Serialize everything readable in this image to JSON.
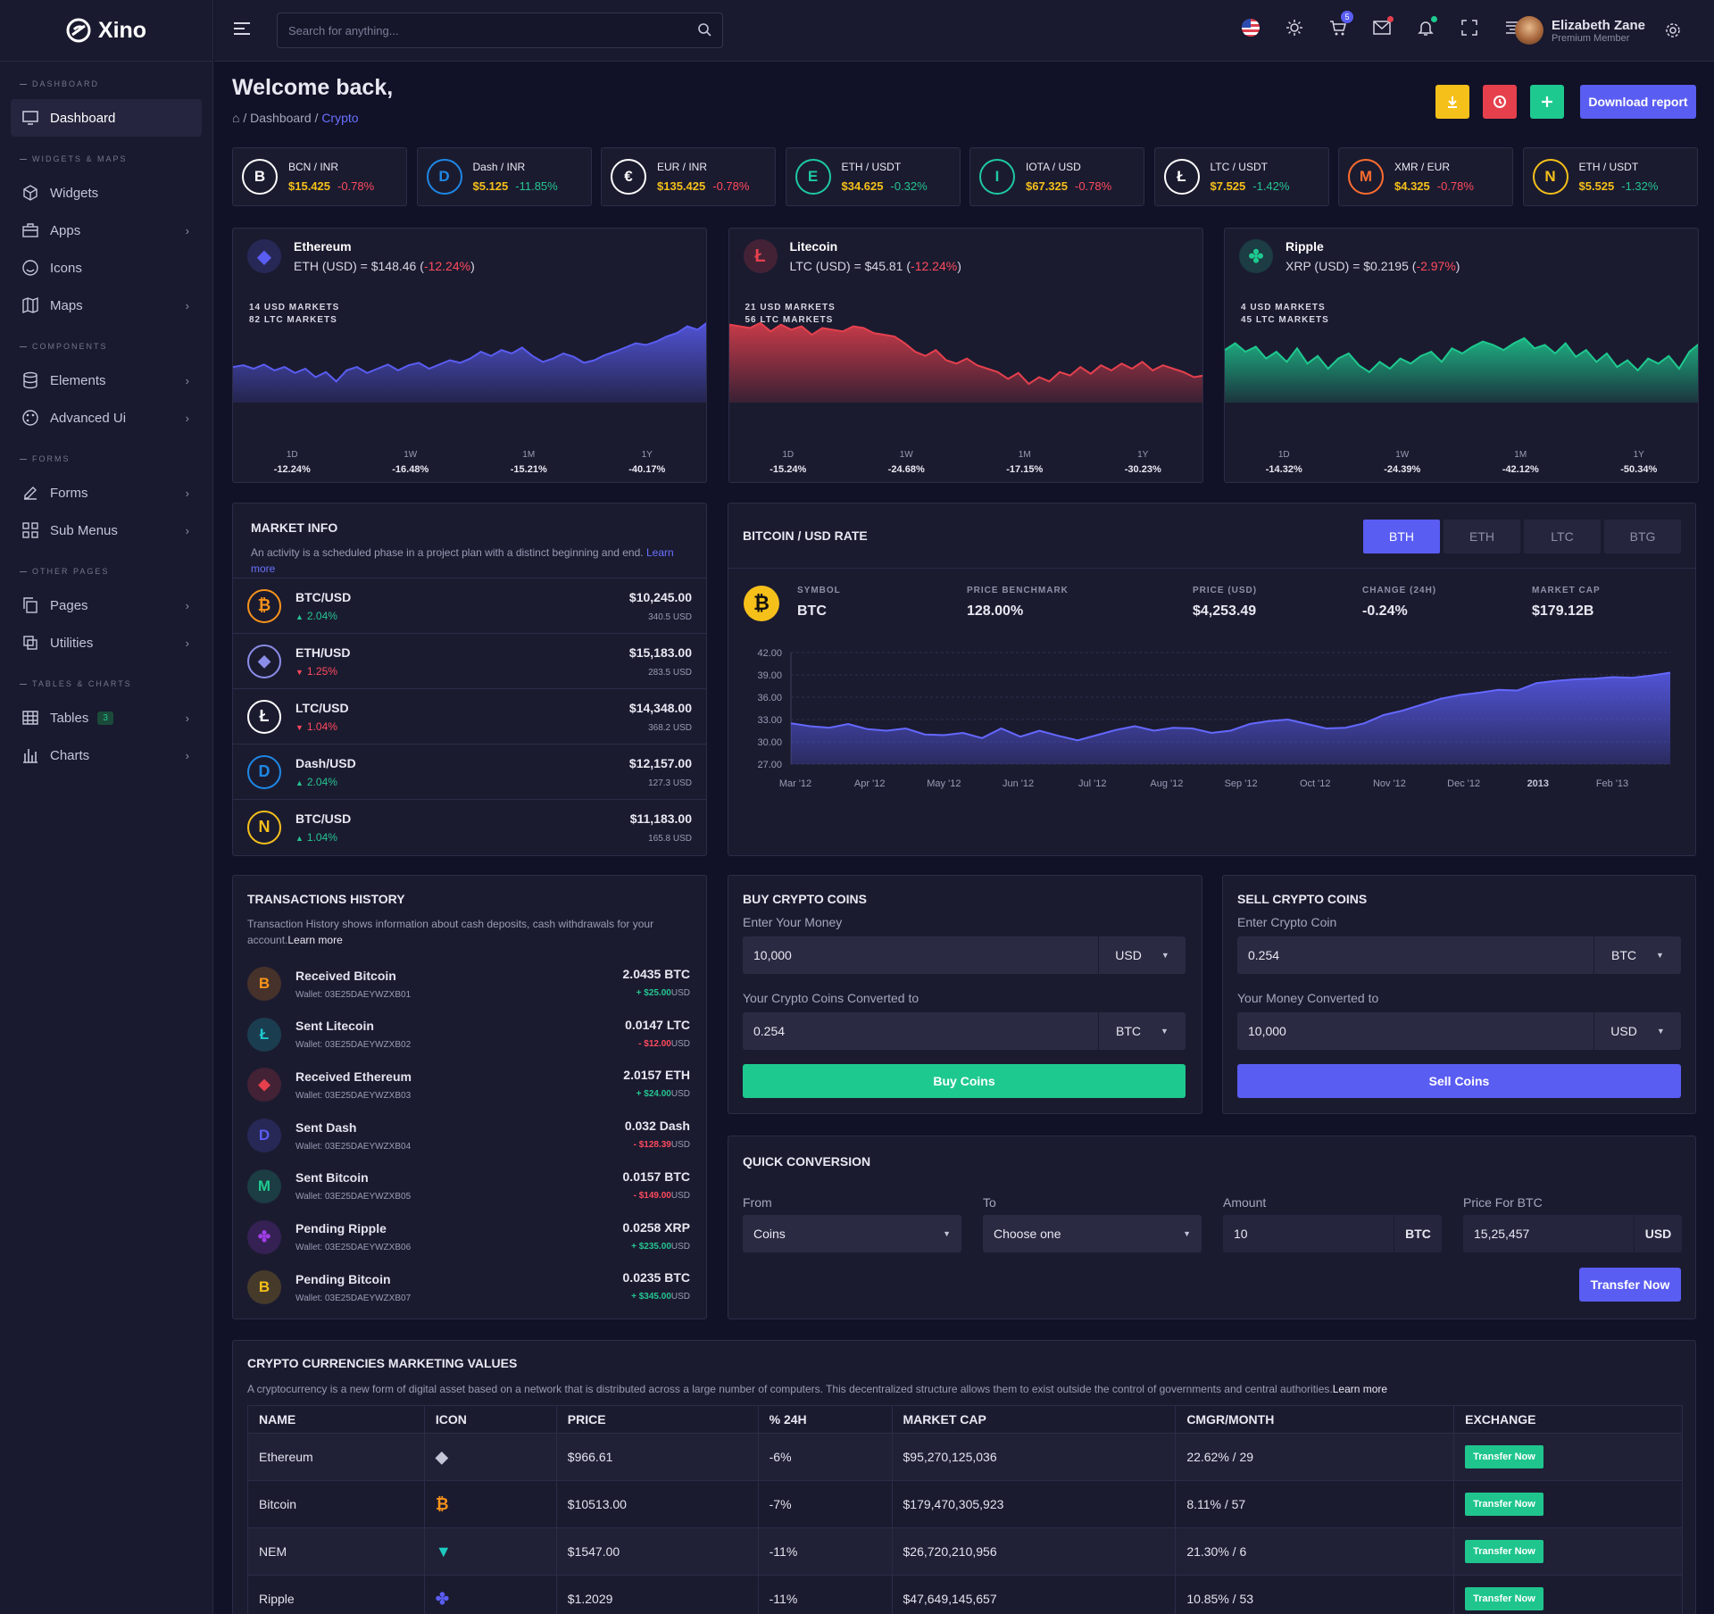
{
  "brand": {
    "name": "Xino"
  },
  "search": {
    "placeholder": "Search for anything..."
  },
  "topbar": {
    "cart_count": "5"
  },
  "user": {
    "name": "Elizabeth Zane",
    "role": "Premium Member"
  },
  "sidebar": {
    "sections": [
      "DASHBOARD",
      "WIDGETS & MAPS",
      "COMPONENTS",
      "FORMS",
      "OTHER PAGES",
      "TABLES & CHARTS"
    ],
    "items": [
      {
        "label": "Dashboard",
        "icon": "monitor-icon"
      },
      {
        "label": "Widgets",
        "icon": "cube-icon"
      },
      {
        "label": "Apps",
        "icon": "briefcase-icon"
      },
      {
        "label": "Icons",
        "icon": "smile-icon"
      },
      {
        "label": "Maps",
        "icon": "map-icon"
      },
      {
        "label": "Elements",
        "icon": "database-icon"
      },
      {
        "label": "Advanced Ui",
        "icon": "palette-icon"
      },
      {
        "label": "Forms",
        "icon": "edit-icon"
      },
      {
        "label": "Sub Menus",
        "icon": "grid-icon"
      },
      {
        "label": "Pages",
        "icon": "copy-icon"
      },
      {
        "label": "Utilities",
        "icon": "layers-icon"
      },
      {
        "label": "Tables",
        "icon": "table-icon",
        "badge": "3"
      },
      {
        "label": "Charts",
        "icon": "bar-chart-icon"
      }
    ]
  },
  "page": {
    "title": "Welcome back,",
    "breadcrumb": [
      "Dashboard",
      "Crypto"
    ],
    "separator": "/",
    "download_label": "Download report"
  },
  "tickers": [
    {
      "pair": "BCN / INR",
      "price": "$15.425",
      "change": "-0.78%",
      "color": "#ffffff"
    },
    {
      "pair": "Dash / INR",
      "price": "$5.125",
      "change": "-11.85%",
      "color": "#1e88e5"
    },
    {
      "pair": "EUR / INR",
      "price": "$135.425",
      "change": "-0.78%",
      "color": "#ffffff"
    },
    {
      "pair": "ETH / USDT",
      "price": "$34.625",
      "change": "-0.32%",
      "color": "#1ec9a0"
    },
    {
      "pair": "IOTA / USD",
      "price": "$67.325",
      "change": "-0.78%",
      "color": "#1ec9a0"
    },
    {
      "pair": "LTC / USDT",
      "price": "$7.525",
      "change": "-1.42%",
      "color": "#ffffff"
    },
    {
      "pair": "XMR / EUR",
      "price": "$4.325",
      "change": "-0.78%",
      "color": "#ff6d2e"
    },
    {
      "pair": "ETH / USDT",
      "price": "$5.525",
      "change": "-1.32%",
      "color": "#f5c01a"
    }
  ],
  "coin_charts": [
    {
      "name": "Ethereum",
      "symbol": "ETH (USD) = $148.46",
      "change": "-12.24%",
      "markets": [
        "14 USD MARKETS",
        "82 LTC MARKETS"
      ],
      "color": "#5a5df2",
      "periods": [
        {
          "p": "1D",
          "v": "-12.24%"
        },
        {
          "p": "1W",
          "v": "-16.48%"
        },
        {
          "p": "1M",
          "v": "-15.21%"
        },
        {
          "p": "1Y",
          "v": "-40.17%"
        }
      ]
    },
    {
      "name": "Litecoin",
      "symbol": "LTC (USD) = $45.81",
      "change": "-12.24%",
      "markets": [
        "21 USD MARKETS",
        "56 LTC MARKETS"
      ],
      "color": "#e6404d",
      "periods": [
        {
          "p": "1D",
          "v": "-15.24%"
        },
        {
          "p": "1W",
          "v": "-24.68%"
        },
        {
          "p": "1M",
          "v": "-17.15%"
        },
        {
          "p": "1Y",
          "v": "-30.23%"
        }
      ]
    },
    {
      "name": "Ripple",
      "symbol": "XRP (USD) = $0.2195",
      "change": "-2.97%",
      "markets": [
        "4 USD MARKETS",
        "45 LTC MARKETS"
      ],
      "color": "#1ec98f",
      "periods": [
        {
          "p": "1D",
          "v": "-14.32%"
        },
        {
          "p": "1W",
          "v": "-24.39%"
        },
        {
          "p": "1M",
          "v": "-42.12%"
        },
        {
          "p": "1Y",
          "v": "-50.34%"
        }
      ]
    }
  ],
  "market_info": {
    "title": "MARKET INFO",
    "desc": "An activity is a scheduled phase in a project plan with a distinct beginning and end.",
    "link": "Learn more",
    "rows": [
      {
        "pair": "BTC/USD",
        "change": "2.04%",
        "dir": "up",
        "price": "$10,245.00",
        "vol": "340.5 USD",
        "color": "#f7931a"
      },
      {
        "pair": "ETH/USD",
        "change": "1.25%",
        "dir": "down",
        "price": "$15,183.00",
        "vol": "283.5 USD",
        "color": "#8b8ee8"
      },
      {
        "pair": "LTC/USD",
        "change": "1.04%",
        "dir": "down",
        "price": "$14,348.00",
        "vol": "368.2 USD",
        "color": "#ffffff"
      },
      {
        "pair": "Dash/USD",
        "change": "2.04%",
        "dir": "up",
        "price": "$12,157.00",
        "vol": "127.3 USD",
        "color": "#1e88e5"
      },
      {
        "pair": "BTC/USD",
        "change": "1.04%",
        "dir": "up",
        "price": "$11,183.00",
        "vol": "165.8 USD",
        "color": "#f5c01a"
      }
    ]
  },
  "btc_rate": {
    "title": "BITCOIN / USD RATE",
    "tabs": [
      "BTH",
      "ETH",
      "LTC",
      "BTG"
    ],
    "stats": [
      {
        "label": "SYMBOL",
        "value": "BTC"
      },
      {
        "label": "PRICE BENCHMARK",
        "value": "128.00%"
      },
      {
        "label": "PRICE (USD)",
        "value": "$4,253.49"
      },
      {
        "label": "CHANGE (24H)",
        "value": "-0.24%"
      },
      {
        "label": "MARKET CAP",
        "value": "$179.12B"
      }
    ]
  },
  "chart_data": {
    "type": "area",
    "title": "BITCOIN / USD RATE",
    "x_ticks": [
      "Mar '12",
      "Apr '12",
      "May '12",
      "Jun '12",
      "Jul '12",
      "Aug '12",
      "Sep '12",
      "Oct '12",
      "Nov '12",
      "Dec '12",
      "2013",
      "Feb '13"
    ],
    "y_ticks": [
      "42.00",
      "39.00",
      "36.00",
      "33.00",
      "30.00",
      "27.00"
    ],
    "ylim": [
      27,
      42
    ],
    "series": [
      {
        "values": [
          32.5,
          32.1,
          31.9,
          32.4,
          31.7,
          31.5,
          31.8,
          31.0,
          30.9,
          31.2,
          30.5,
          31.8,
          30.7,
          31.5,
          30.8,
          30.2,
          30.9,
          31.6,
          32.1,
          31.5,
          31.9,
          31.8,
          31.2,
          31.5,
          32.4,
          32.8,
          33.0,
          32.4,
          31.8,
          31.9,
          32.5,
          33.6,
          34.2,
          35.0,
          35.8,
          36.3,
          36.6,
          37.0,
          36.9,
          37.9,
          38.2,
          38.4,
          38.5,
          38.7,
          38.6,
          38.9,
          39.3
        ]
      }
    ],
    "grid": true
  },
  "transactions": {
    "title": "TRANSACTIONS HISTORY",
    "desc": "Transaction History shows information about cash deposits, cash withdrawals for your account.",
    "link": "Learn more",
    "rows": [
      {
        "name": "Received Bitcoin",
        "wallet": "Wallet: 03E25DAEYWZXB01",
        "amount": "2.0435 BTC",
        "usd": "+ $25.00",
        "sign": "pos",
        "color": "#f7931a",
        "glyph": "B"
      },
      {
        "name": "Sent Litecoin",
        "wallet": "Wallet: 03E25DAEYWZXB02",
        "amount": "0.0147 LTC",
        "usd": "- $12.00",
        "sign": "neg",
        "color": "#1ec9d1",
        "glyph": "Ł"
      },
      {
        "name": "Received Ethereum",
        "wallet": "Wallet: 03E25DAEYWZXB03",
        "amount": "2.0157 ETH",
        "usd": "+ $24.00",
        "sign": "pos",
        "color": "#e6404d",
        "glyph": "◆"
      },
      {
        "name": "Sent Dash",
        "wallet": "Wallet: 03E25DAEYWZXB04",
        "amount": "0.032 Dash",
        "usd": "- $128.39",
        "sign": "neg",
        "color": "#5a5df2",
        "glyph": "D"
      },
      {
        "name": "Sent Bitcoin",
        "wallet": "Wallet: 03E25DAEYWZXB05",
        "amount": "0.0157 BTC",
        "usd": "- $149.00",
        "sign": "neg",
        "color": "#1ec98f",
        "glyph": "M"
      },
      {
        "name": "Pending Ripple",
        "wallet": "Wallet: 03E25DAEYWZXB06",
        "amount": "0.0258 XRP",
        "usd": "+ $235.00",
        "sign": "pos",
        "color": "#a03ee8",
        "glyph": "✤"
      },
      {
        "name": "Pending Bitcoin",
        "wallet": "Wallet: 03E25DAEYWZXB07",
        "amount": "0.0235 BTC",
        "usd": "+ $345.00",
        "sign": "pos",
        "color": "#f5c01a",
        "glyph": "B"
      }
    ],
    "unit": "USD"
  },
  "buy": {
    "title": "BUY CRYPTO COINS",
    "label1": "Enter Your Money",
    "value1": "10,000",
    "unit1": "USD",
    "label2": "Your Crypto Coins Converted to",
    "value2": "0.254",
    "unit2": "BTC",
    "button": "Buy Coins"
  },
  "sell": {
    "title": "SELL CRYPTO COINS",
    "label1": "Enter Crypto Coin",
    "value1": "0.254",
    "unit1": "BTC",
    "label2": "Your Money Converted to",
    "value2": "10,000",
    "unit2": "USD",
    "button": "Sell Coins"
  },
  "quick": {
    "title": "QUICK CONVERSION",
    "from_label": "From",
    "from": "Coins",
    "to_label": "To",
    "to": "Choose one",
    "amount_label": "Amount",
    "amount": "10",
    "amount_unit": "BTC",
    "price_label": "Price For BTC",
    "price": "15,25,457",
    "price_unit": "USD",
    "button": "Transfer Now"
  },
  "market_table": {
    "title": "CRYPTO CURRENCIES MARKETING VALUES",
    "desc": "A cryptocurrency is a new form of digital asset based on a network that is distributed across a large number of computers. This decentralized structure allows them to exist outside the control of governments and central authorities.",
    "link": "Learn more",
    "headers": [
      "NAME",
      "ICON",
      "PRICE",
      "% 24H",
      "MARKET CAP",
      "CMGR/MONTH",
      "EXCHANGE"
    ],
    "rows": [
      {
        "name": "Ethereum",
        "icon": "ethereum-icon",
        "price": "$966.61",
        "change": "-6%",
        "cap": "$95,270,125,036",
        "cmgr": "22.62% / 29",
        "action": "Transfer Now"
      },
      {
        "name": "Bitcoin",
        "icon": "bitcoin-icon",
        "price": "$10513.00",
        "change": "-7%",
        "cap": "$179,470,305,923",
        "cmgr": "8.11% / 57",
        "action": "Transfer Now"
      },
      {
        "name": "NEM",
        "icon": "nem-icon",
        "price": "$1547.00",
        "change": "-11%",
        "cap": "$26,720,210,956",
        "cmgr": "21.30% / 6",
        "action": "Transfer Now"
      },
      {
        "name": "Ripple",
        "icon": "ripple-icon",
        "price": "$1.2029",
        "change": "-11%",
        "cap": "$47,649,145,657",
        "cmgr": "10.85% / 53",
        "action": "Transfer Now"
      }
    ]
  }
}
